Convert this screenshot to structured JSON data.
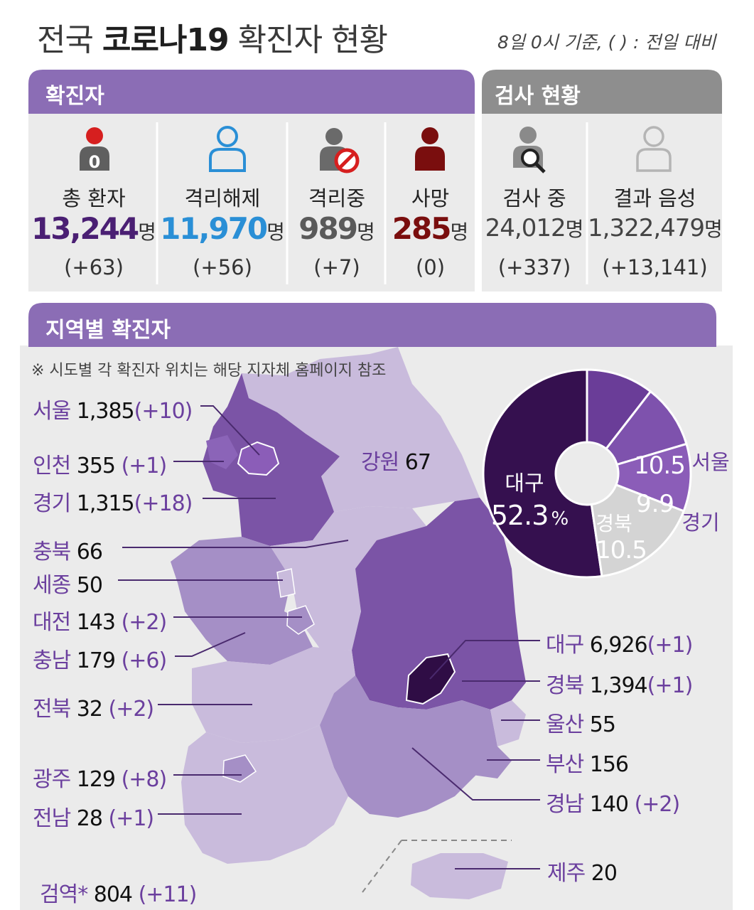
{
  "header": {
    "title_prefix": "전국",
    "title_bold": "코로나19",
    "title_suffix": "확진자 현황",
    "subtitle": "8일 0시 기준, ( ) : 전일 대비"
  },
  "sections": {
    "confirmed": "확진자",
    "testing": "검사 현황",
    "regional": "지역별 확진자"
  },
  "stats": [
    {
      "label": "총 환자",
      "value": "13,244",
      "unit": "명",
      "delta": "(+63)",
      "color": "#4a1f73"
    },
    {
      "label": "격리해제",
      "value": "11,970",
      "unit": "명",
      "delta": "(+56)",
      "color": "#2a8fd6"
    },
    {
      "label": "격리중",
      "value": "989",
      "unit": "명",
      "delta": "(+7)",
      "color": "#5a5a5a"
    },
    {
      "label": "사망",
      "value": "285",
      "unit": "명",
      "delta": "(0)",
      "color": "#7a0e0e"
    },
    {
      "label": "검사 중",
      "value": "24,012",
      "unit": "명",
      "delta": "(+337)",
      "color": "#444444"
    },
    {
      "label": "결과 음성",
      "value": "1,322,479",
      "unit": "명",
      "delta": "(+13,141)",
      "color": "#444444"
    }
  ],
  "icons": {
    "total_badge": "0",
    "total": "person-red-badge-icon",
    "released": "person-outline-blue-icon",
    "isolated": "person-prohibited-icon",
    "deceased": "person-darkred-icon",
    "testing": "person-magnifier-icon",
    "negative": "person-outline-gray-icon"
  },
  "map": {
    "note": "※ 시도별 각 확진자 위치는 해당 지자체 홈페이지 참조",
    "regions": [
      {
        "name": "서울",
        "count": "1,385",
        "delta": "(+10)"
      },
      {
        "name": "인천",
        "count": "355",
        "delta": "(+1)"
      },
      {
        "name": "경기",
        "count": "1,315",
        "delta": "(+18)"
      },
      {
        "name": "충북",
        "count": "66",
        "delta": ""
      },
      {
        "name": "세종",
        "count": "50",
        "delta": ""
      },
      {
        "name": "대전",
        "count": "143",
        "delta": "(+2)"
      },
      {
        "name": "충남",
        "count": "179",
        "delta": "(+6)"
      },
      {
        "name": "전북",
        "count": "32",
        "delta": "(+2)"
      },
      {
        "name": "광주",
        "count": "129",
        "delta": "(+8)"
      },
      {
        "name": "전남",
        "count": "28",
        "delta": "(+1)"
      },
      {
        "name": "검역*",
        "count": "804",
        "delta": "(+11)"
      },
      {
        "name": "강원",
        "count": "67",
        "delta": ""
      },
      {
        "name": "대구",
        "count": "6,926",
        "delta": "(+1)"
      },
      {
        "name": "경북",
        "count": "1,394",
        "delta": "(+1)"
      },
      {
        "name": "울산",
        "count": "55",
        "delta": ""
      },
      {
        "name": "부산",
        "count": "156",
        "delta": ""
      },
      {
        "name": "경남",
        "count": "140",
        "delta": "(+2)"
      },
      {
        "name": "제주",
        "count": "20",
        "delta": ""
      }
    ],
    "colors": {
      "light": "#c9bbdc",
      "mid": "#a58fc6",
      "dark": "#7b54a6",
      "darkest": "#2f0d45"
    }
  },
  "chart_data": {
    "type": "pie",
    "donut": true,
    "unit": "%",
    "slices": [
      {
        "label": "대구",
        "value": 52.3,
        "display": "52.3",
        "color": "#35104f"
      },
      {
        "label": "경북",
        "value": 10.5,
        "display": "10.5",
        "color": "#6a3d98"
      },
      {
        "label": "경기",
        "value": 9.9,
        "display": "9.9",
        "color": "#7e52ad"
      },
      {
        "label": "서울",
        "value": 10.5,
        "display": "10.5",
        "color": "#8b5db8"
      },
      {
        "label": "",
        "value": 16.8,
        "display": "",
        "color": "#d4d4d4"
      }
    ]
  }
}
